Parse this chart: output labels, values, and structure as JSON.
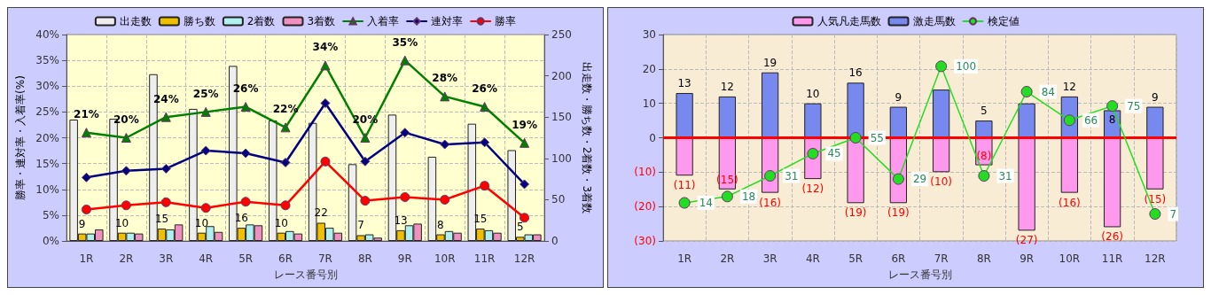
{
  "chart_data": [
    {
      "type": "bar",
      "xlabel": "レース番号別",
      "ylabel": "勝率・連対率・入着率(%)",
      "y2label": "出走数・勝ち数・2着数・3着数",
      "categories": [
        "1R",
        "2R",
        "3R",
        "4R",
        "5R",
        "6R",
        "7R",
        "8R",
        "9R",
        "10R",
        "11R",
        "12R"
      ],
      "series": [
        {
          "name": "出走数",
          "axis": "y2",
          "color": "#eeeeee",
          "values": [
            147,
            148,
            202,
            160,
            212,
            146,
            143,
            93,
            153,
            102,
            142,
            110
          ]
        },
        {
          "name": "勝ち数",
          "axis": "y2",
          "color": "#f0c000",
          "values": [
            9,
            10,
            15,
            10,
            16,
            10,
            22,
            7,
            13,
            8,
            15,
            5
          ],
          "value_labels": [
            "9",
            "10",
            "15",
            "10",
            "16",
            "10",
            "22",
            "7",
            "13",
            "8",
            "15",
            "5"
          ]
        },
        {
          "name": "2着数",
          "axis": "y2",
          "color": "#b0f0f0",
          "values": [
            9,
            10,
            14,
            18,
            20,
            12,
            16,
            8,
            19,
            12,
            13,
            8
          ]
        },
        {
          "name": "3着数",
          "axis": "y2",
          "color": "#f090c0",
          "values": [
            14,
            9,
            20,
            11,
            19,
            9,
            10,
            4,
            21,
            10,
            10,
            8
          ]
        },
        {
          "name": "入着率",
          "type": "line",
          "color": "#008000",
          "marker": "triangle",
          "values": [
            21,
            20,
            24,
            25,
            26,
            22,
            34,
            20,
            35,
            28,
            26,
            19
          ],
          "value_labels": [
            "21%",
            "20%",
            "24%",
            "25%",
            "26%",
            "22%",
            "34%",
            "20%",
            "35%",
            "28%",
            "26%",
            "19%"
          ]
        },
        {
          "name": "連対率",
          "type": "line",
          "color": "#000080",
          "marker": "diamond",
          "values": [
            12.3,
            13.6,
            14.0,
            17.5,
            17.0,
            15.2,
            26.7,
            15.4,
            21.0,
            18.7,
            19.1,
            11.0
          ]
        },
        {
          "name": "勝率",
          "type": "line",
          "color": "#ff0000",
          "marker": "circle",
          "values": [
            6.1,
            6.9,
            7.5,
            6.4,
            7.6,
            6.9,
            15.4,
            7.8,
            8.5,
            8.0,
            10.7,
            4.5
          ]
        }
      ],
      "ylim": [
        0,
        40
      ],
      "yticks": [
        {
          "value": 0,
          "label": "0%"
        },
        {
          "value": 5,
          "label": "5%"
        },
        {
          "value": 10,
          "label": "10%"
        },
        {
          "value": 15,
          "label": "15%"
        },
        {
          "value": 20,
          "label": "20%"
        },
        {
          "value": 25,
          "label": "25%"
        },
        {
          "value": 30,
          "label": "30%"
        },
        {
          "value": 35,
          "label": "35%"
        },
        {
          "value": 40,
          "label": "40%"
        }
      ],
      "y2lim": [
        0,
        250
      ],
      "y2ticks": [
        0,
        50,
        100,
        150,
        200,
        250
      ],
      "grid": true,
      "legend": "top",
      "line_style": "solid"
    },
    {
      "type": "bar",
      "xlabel": "レース番号別",
      "stacked": true,
      "categories": [
        "1R",
        "2R",
        "3R",
        "4R",
        "5R",
        "6R",
        "7R",
        "8R",
        "9R",
        "10R",
        "11R",
        "12R"
      ],
      "series": [
        {
          "name": "人気凡走馬数",
          "color": "#ff99ee",
          "values": [
            -11,
            -15,
            -16,
            -12,
            -19,
            -19,
            -10,
            -8,
            -27,
            -16,
            -26,
            -15
          ],
          "value_labels": [
            "(11)",
            "(15)",
            "(16)",
            "(12)",
            "(19)",
            "(19)",
            "(10)",
            "(8)",
            "(27)",
            "(16)",
            "(26)",
            "(15)"
          ]
        },
        {
          "name": "激走馬数",
          "color": "#7788ee",
          "values": [
            13,
            12,
            19,
            10,
            16,
            9,
            14,
            5,
            10,
            12,
            8,
            9
          ],
          "value_labels": [
            "13",
            "12",
            "19",
            "10",
            "16",
            "9",
            null,
            "5",
            null,
            "12",
            "8",
            "9"
          ]
        },
        {
          "name": "検定値",
          "type": "line",
          "axis": "y2",
          "color": "#22dd22",
          "marker": "circle",
          "values": [
            14,
            18,
            31,
            45,
            55,
            29,
            100,
            31,
            84,
            66,
            75,
            7
          ],
          "value_labels": [
            "14",
            "18",
            "31",
            "45",
            "55",
            "29",
            "100",
            "31",
            "84",
            "66",
            "75",
            "7"
          ]
        }
      ],
      "ylim": [
        -30,
        30
      ],
      "yticks": [
        {
          "value": -30,
          "label": "(30)"
        },
        {
          "value": -20,
          "label": "(20)"
        },
        {
          "value": -10,
          "label": "(10)"
        },
        0,
        10,
        20,
        30
      ],
      "y2lim": [
        -10,
        120
      ],
      "ref_lines": [
        {
          "axis": "y",
          "value": 0,
          "color": "#ff0000"
        }
      ],
      "grid": true,
      "legend": "top",
      "line_style": "solid"
    }
  ]
}
